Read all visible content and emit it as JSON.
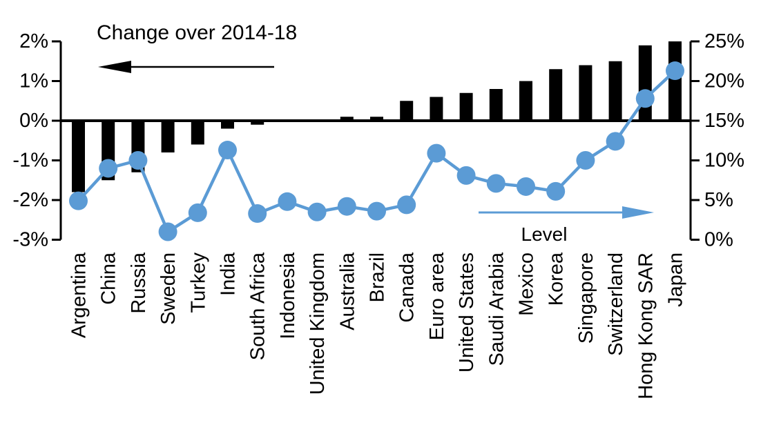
{
  "chart": {
    "left_series_label": "Change over 2014-18",
    "right_series_label": "Level",
    "colors": {
      "bar": "#000000",
      "line": "#5B9BD5",
      "axis": "#000000",
      "background": "#FFFFFF"
    }
  },
  "chart_data": {
    "type": "bar+line",
    "title": "",
    "categories": [
      "Argentina",
      "China",
      "Russia",
      "Sweden",
      "Turkey",
      "India",
      "South Africa",
      "Indonesia",
      "United Kingdom",
      "Australia",
      "Brazil",
      "Canada",
      "Euro area",
      "United States",
      "Saudi Arabia",
      "Mexico",
      "Korea",
      "Singapore",
      "Switzerland",
      "Hong Kong SAR",
      "Japan"
    ],
    "series": [
      {
        "name": "Change over 2014-18",
        "type": "bar",
        "axis": "left",
        "color": "#000000",
        "values": [
          -1.8,
          -1.5,
          -1.3,
          -0.8,
          -0.6,
          -0.2,
          -0.1,
          0,
          0,
          0.1,
          0.1,
          0.5,
          0.6,
          0.7,
          0.8,
          1.0,
          1.3,
          1.4,
          1.5,
          1.9,
          2.0
        ]
      },
      {
        "name": "Level",
        "type": "line",
        "axis": "right",
        "color": "#5B9BD5",
        "values": [
          4.9,
          9.0,
          10.0,
          1.0,
          3.4,
          11.3,
          3.3,
          4.8,
          3.5,
          4.2,
          3.6,
          4.4,
          10.9,
          8.1,
          7.1,
          6.7,
          6.1,
          10.0,
          12.4,
          17.8,
          21.3
        ]
      }
    ],
    "left_axis": {
      "tick_labels": [
        "2%",
        "1%",
        "0%",
        "-1%",
        "-2%",
        "-3%"
      ],
      "tick_values": [
        2,
        1,
        0,
        -1,
        -2,
        -3
      ],
      "range": [
        -3,
        2
      ]
    },
    "right_axis": {
      "tick_labels": [
        "25%",
        "20%",
        "15%",
        "10%",
        "5%",
        "0%"
      ],
      "tick_values": [
        25,
        20,
        15,
        10,
        5,
        0
      ],
      "range": [
        0,
        25
      ]
    },
    "annotations": [
      {
        "text": "Change over 2014-18",
        "arrow_direction": "left",
        "color": "#000000"
      },
      {
        "text": "Level",
        "arrow_direction": "right",
        "color": "#5B9BD5"
      }
    ],
    "grid": false,
    "legend_position": "none"
  }
}
